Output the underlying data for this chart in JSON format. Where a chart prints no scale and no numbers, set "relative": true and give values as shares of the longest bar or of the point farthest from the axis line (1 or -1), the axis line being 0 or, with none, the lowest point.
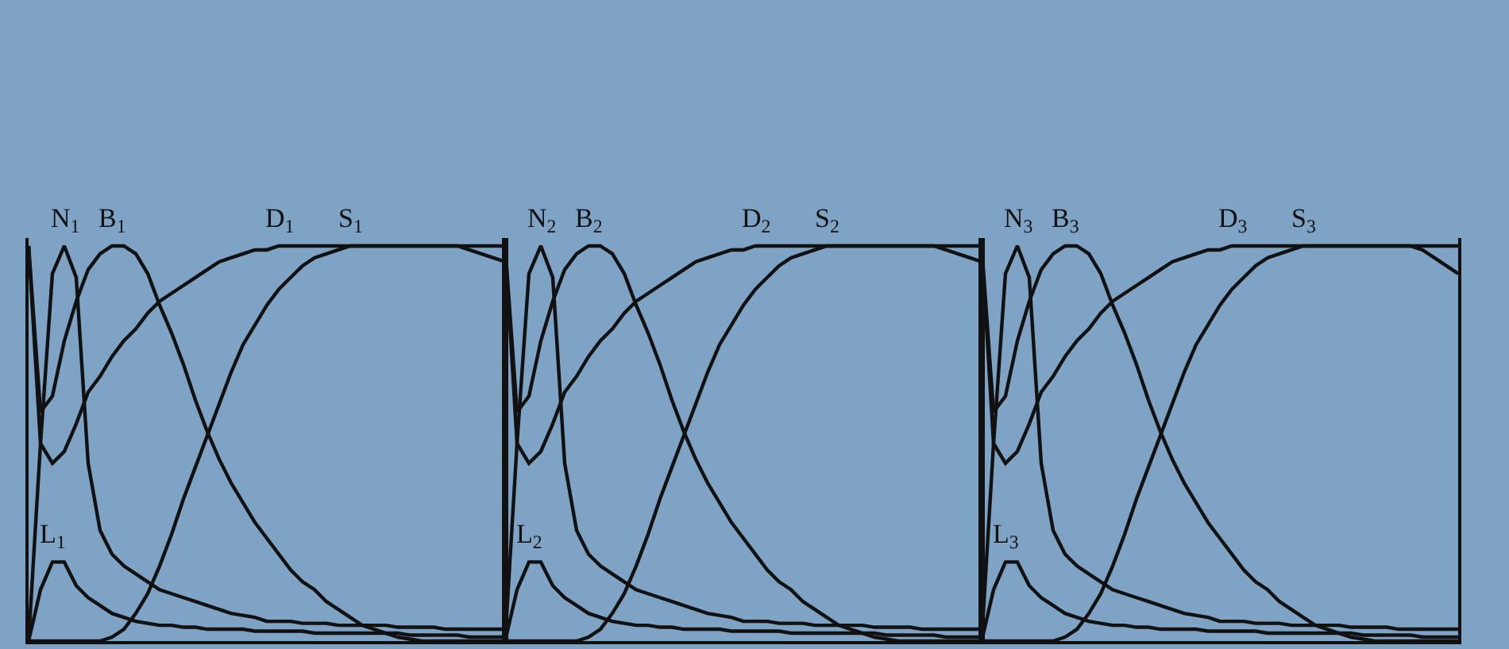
{
  "chart_data": [
    {
      "type": "line",
      "relative": true,
      "legend": false,
      "marker": "none",
      "line_style": "solid",
      "categories": [
        null,
        null,
        null,
        null,
        null,
        null,
        null,
        null,
        null,
        null,
        null,
        null,
        null,
        null,
        null,
        null,
        null,
        null,
        null,
        null,
        null,
        null,
        null,
        null,
        null,
        null,
        null,
        null,
        null,
        null,
        null,
        null,
        null,
        null,
        null,
        null,
        null,
        null,
        null,
        null,
        null
      ],
      "series": [
        {
          "name": "N$_{1}$",
          "color": "#111111",
          "values": [
            0,
            0.5,
            0.93,
            1.0,
            0.92,
            0.45,
            0.28,
            0.22,
            0.19,
            0.17,
            0.15,
            0.13,
            0.12,
            0.11,
            0.1,
            0.09,
            0.08,
            0.07,
            0.065,
            0.06,
            0.05,
            0.05,
            0.05,
            0.045,
            0.045,
            0.045,
            0.04,
            0.04,
            0.04,
            0.04,
            0.04,
            0.035,
            0.035,
            0.035,
            0.035,
            0.03,
            0.03,
            0.03,
            0.03,
            0.03,
            0.03
          ]
        },
        {
          "name": "B$_{1}$",
          "color": "#111111",
          "values": [
            1.0,
            0.58,
            0.62,
            0.76,
            0.86,
            0.94,
            0.98,
            1.0,
            1.0,
            0.98,
            0.93,
            0.85,
            0.78,
            0.7,
            0.61,
            0.53,
            0.46,
            0.4,
            0.35,
            0.3,
            0.26,
            0.22,
            0.18,
            0.15,
            0.13,
            0.1,
            0.08,
            0.06,
            0.04,
            0.03,
            0.02,
            0.01,
            0.005,
            0,
            0,
            0,
            0,
            0,
            0,
            0,
            0
          ]
        },
        {
          "name": "D$_{1}$",
          "color": "#111111",
          "values": [
            1.0,
            0.5,
            0.45,
            0.48,
            0.55,
            0.63,
            0.67,
            0.72,
            0.76,
            0.79,
            0.83,
            0.86,
            0.88,
            0.9,
            0.92,
            0.94,
            0.96,
            0.97,
            0.98,
            0.99,
            0.99,
            1.0,
            1.0,
            1.0,
            1.0,
            1.0,
            1.0,
            1.0,
            1.0,
            1.0,
            1.0,
            1.0,
            1.0,
            1.0,
            1.0,
            1.0,
            1.0,
            1.0,
            1.0,
            1.0,
            1.0
          ]
        },
        {
          "name": "S$_{1}$",
          "color": "#111111",
          "values": [
            0,
            0,
            0,
            0,
            0,
            0,
            0,
            0.01,
            0.03,
            0.07,
            0.12,
            0.19,
            0.27,
            0.36,
            0.44,
            0.52,
            0.6,
            0.68,
            0.75,
            0.8,
            0.85,
            0.89,
            0.92,
            0.95,
            0.97,
            0.98,
            0.99,
            1.0,
            1.0,
            1.0,
            1.0,
            1.0,
            1.0,
            1.0,
            1.0,
            1.0,
            1.0,
            0.99,
            0.98,
            0.97,
            0.96
          ]
        },
        {
          "name": "L$_{1}$",
          "color": "#111111",
          "values": [
            0,
            0.13,
            0.2,
            0.2,
            0.14,
            0.11,
            0.09,
            0.07,
            0.06,
            0.05,
            0.045,
            0.04,
            0.04,
            0.035,
            0.035,
            0.03,
            0.03,
            0.03,
            0.03,
            0.025,
            0.025,
            0.025,
            0.025,
            0.025,
            0.02,
            0.02,
            0.02,
            0.02,
            0.02,
            0.02,
            0.02,
            0.02,
            0.015,
            0.015,
            0.015,
            0.015,
            0.015,
            0.01,
            0.01,
            0.01,
            0.01
          ]
        }
      ]
    },
    {
      "type": "line",
      "relative": true,
      "legend": false,
      "marker": "none",
      "line_style": "solid",
      "categories": [
        null,
        null,
        null,
        null,
        null,
        null,
        null,
        null,
        null,
        null,
        null,
        null,
        null,
        null,
        null,
        null,
        null,
        null,
        null,
        null,
        null,
        null,
        null,
        null,
        null,
        null,
        null,
        null,
        null,
        null,
        null,
        null,
        null,
        null,
        null,
        null,
        null,
        null,
        null,
        null,
        null
      ],
      "series": [
        {
          "name": "N$_{2}$",
          "color": "#111111",
          "values": [
            0,
            0.5,
            0.93,
            1.0,
            0.92,
            0.45,
            0.28,
            0.22,
            0.19,
            0.17,
            0.15,
            0.13,
            0.12,
            0.11,
            0.1,
            0.09,
            0.08,
            0.07,
            0.065,
            0.06,
            0.05,
            0.05,
            0.05,
            0.045,
            0.045,
            0.045,
            0.04,
            0.04,
            0.04,
            0.04,
            0.04,
            0.035,
            0.035,
            0.035,
            0.035,
            0.03,
            0.03,
            0.03,
            0.03,
            0.03,
            0.03
          ]
        },
        {
          "name": "B$_{2}$",
          "color": "#111111",
          "values": [
            1.0,
            0.58,
            0.62,
            0.76,
            0.86,
            0.94,
            0.98,
            1.0,
            1.0,
            0.98,
            0.93,
            0.85,
            0.78,
            0.7,
            0.61,
            0.53,
            0.46,
            0.4,
            0.35,
            0.3,
            0.26,
            0.22,
            0.18,
            0.15,
            0.13,
            0.1,
            0.08,
            0.06,
            0.04,
            0.03,
            0.02,
            0.01,
            0.005,
            0,
            0,
            0,
            0,
            0,
            0,
            0,
            0
          ]
        },
        {
          "name": "D$_{2}$",
          "color": "#111111",
          "values": [
            1.0,
            0.5,
            0.45,
            0.48,
            0.55,
            0.63,
            0.67,
            0.72,
            0.76,
            0.79,
            0.83,
            0.86,
            0.88,
            0.9,
            0.92,
            0.94,
            0.96,
            0.97,
            0.98,
            0.99,
            0.99,
            1.0,
            1.0,
            1.0,
            1.0,
            1.0,
            1.0,
            1.0,
            1.0,
            1.0,
            1.0,
            1.0,
            1.0,
            1.0,
            1.0,
            1.0,
            1.0,
            1.0,
            1.0,
            1.0,
            1.0
          ]
        },
        {
          "name": "S$_{2}$",
          "color": "#111111",
          "values": [
            0,
            0,
            0,
            0,
            0,
            0,
            0,
            0.01,
            0.03,
            0.07,
            0.12,
            0.19,
            0.27,
            0.36,
            0.44,
            0.52,
            0.6,
            0.68,
            0.75,
            0.8,
            0.85,
            0.89,
            0.92,
            0.95,
            0.97,
            0.98,
            0.99,
            1.0,
            1.0,
            1.0,
            1.0,
            1.0,
            1.0,
            1.0,
            1.0,
            1.0,
            1.0,
            0.99,
            0.98,
            0.97,
            0.96
          ]
        },
        {
          "name": "L$_{2}$",
          "color": "#111111",
          "values": [
            0,
            0.13,
            0.2,
            0.2,
            0.14,
            0.11,
            0.09,
            0.07,
            0.06,
            0.05,
            0.045,
            0.04,
            0.04,
            0.035,
            0.035,
            0.03,
            0.03,
            0.03,
            0.03,
            0.025,
            0.025,
            0.025,
            0.025,
            0.025,
            0.02,
            0.02,
            0.02,
            0.02,
            0.02,
            0.02,
            0.02,
            0.02,
            0.015,
            0.015,
            0.015,
            0.015,
            0.015,
            0.01,
            0.01,
            0.01,
            0.01
          ]
        }
      ]
    },
    {
      "type": "line",
      "relative": true,
      "legend": false,
      "marker": "none",
      "line_style": "solid",
      "categories": [
        null,
        null,
        null,
        null,
        null,
        null,
        null,
        null,
        null,
        null,
        null,
        null,
        null,
        null,
        null,
        null,
        null,
        null,
        null,
        null,
        null,
        null,
        null,
        null,
        null,
        null,
        null,
        null,
        null,
        null,
        null,
        null,
        null,
        null,
        null,
        null,
        null,
        null,
        null,
        null,
        null
      ],
      "series": [
        {
          "name": "N$_{3}$",
          "color": "#111111",
          "values": [
            0,
            0.5,
            0.93,
            1.0,
            0.92,
            0.45,
            0.28,
            0.22,
            0.19,
            0.17,
            0.15,
            0.13,
            0.12,
            0.11,
            0.1,
            0.09,
            0.08,
            0.07,
            0.065,
            0.06,
            0.05,
            0.05,
            0.05,
            0.045,
            0.045,
            0.045,
            0.04,
            0.04,
            0.04,
            0.04,
            0.04,
            0.035,
            0.035,
            0.035,
            0.035,
            0.03,
            0.03,
            0.03,
            0.03,
            0.03,
            0.03
          ]
        },
        {
          "name": "B$_{3}$",
          "color": "#111111",
          "values": [
            1.0,
            0.58,
            0.62,
            0.76,
            0.86,
            0.94,
            0.98,
            1.0,
            1.0,
            0.98,
            0.93,
            0.85,
            0.78,
            0.7,
            0.61,
            0.53,
            0.46,
            0.4,
            0.35,
            0.3,
            0.26,
            0.22,
            0.18,
            0.15,
            0.13,
            0.1,
            0.08,
            0.06,
            0.04,
            0.03,
            0.02,
            0.01,
            0.005,
            0,
            0,
            0,
            0,
            0,
            0,
            0,
            0
          ]
        },
        {
          "name": "D$_{3}$",
          "color": "#111111",
          "values": [
            1.0,
            0.5,
            0.45,
            0.48,
            0.55,
            0.63,
            0.67,
            0.72,
            0.76,
            0.79,
            0.83,
            0.86,
            0.88,
            0.9,
            0.92,
            0.94,
            0.96,
            0.97,
            0.98,
            0.99,
            0.99,
            1.0,
            1.0,
            1.0,
            1.0,
            1.0,
            1.0,
            1.0,
            1.0,
            1.0,
            1.0,
            1.0,
            1.0,
            1.0,
            1.0,
            1.0,
            1.0,
            1.0,
            1.0,
            1.0,
            1.0
          ]
        },
        {
          "name": "S$_{3}$",
          "color": "#111111",
          "values": [
            0,
            0,
            0,
            0,
            0,
            0,
            0,
            0.01,
            0.03,
            0.07,
            0.12,
            0.19,
            0.27,
            0.36,
            0.44,
            0.52,
            0.6,
            0.68,
            0.75,
            0.8,
            0.85,
            0.89,
            0.92,
            0.95,
            0.97,
            0.98,
            0.99,
            1.0,
            1.0,
            1.0,
            1.0,
            1.0,
            1.0,
            1.0,
            1.0,
            1.0,
            1.0,
            0.99,
            0.97,
            0.95,
            0.93
          ]
        },
        {
          "name": "L$_{3}$",
          "color": "#111111",
          "values": [
            0,
            0.13,
            0.2,
            0.2,
            0.14,
            0.11,
            0.09,
            0.07,
            0.06,
            0.05,
            0.045,
            0.04,
            0.04,
            0.035,
            0.035,
            0.03,
            0.03,
            0.03,
            0.03,
            0.025,
            0.025,
            0.025,
            0.025,
            0.025,
            0.02,
            0.02,
            0.02,
            0.02,
            0.02,
            0.02,
            0.02,
            0.02,
            0.015,
            0.015,
            0.015,
            0.015,
            0.015,
            0.01,
            0.01,
            0.01,
            0.01
          ]
        }
      ]
    }
  ]
}
